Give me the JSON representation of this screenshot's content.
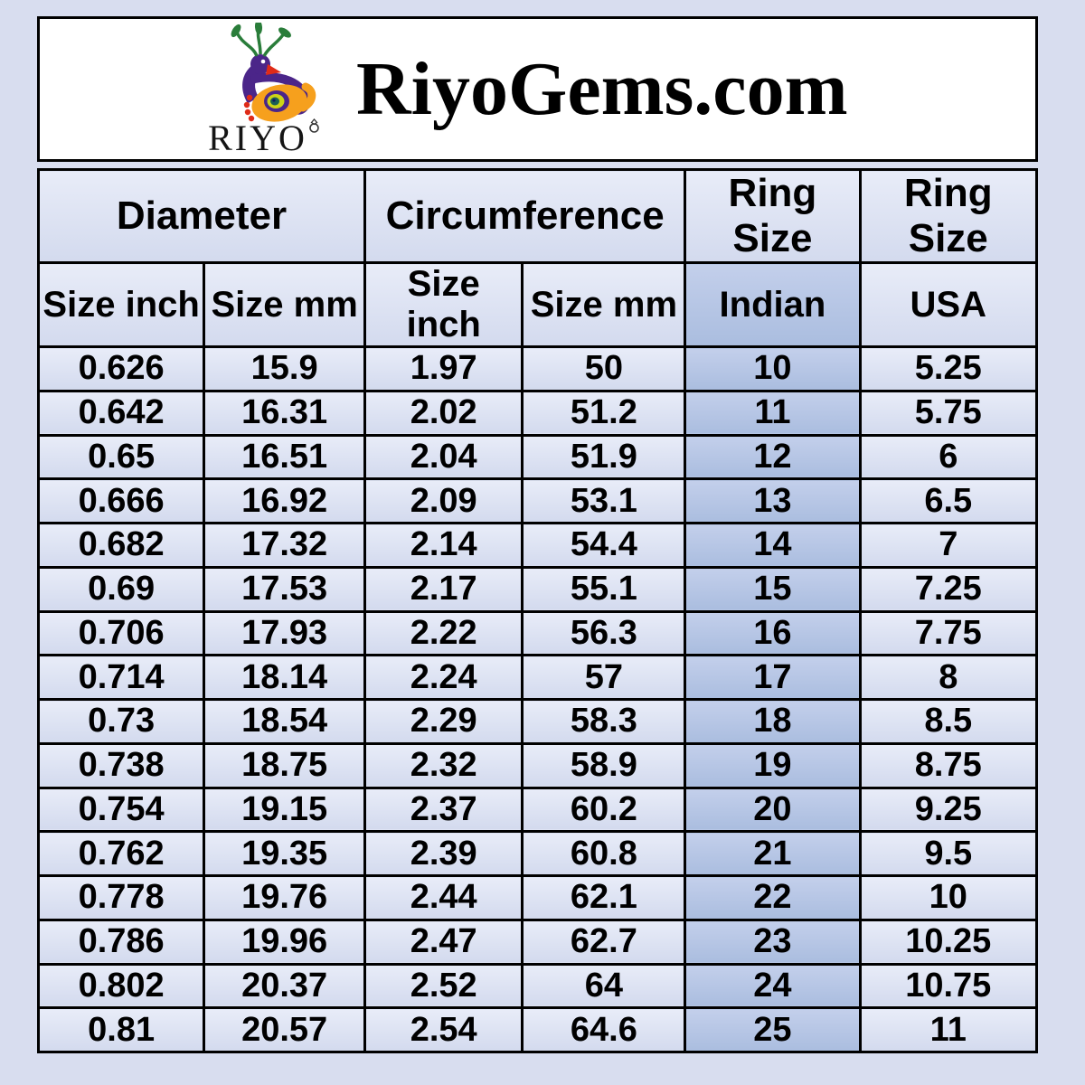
{
  "header": {
    "title": "RiyoGems.com",
    "logo_text": "RIYO"
  },
  "table": {
    "column_groups": [
      {
        "label": "Diameter",
        "span": 2
      },
      {
        "label": "Circumference",
        "span": 2
      },
      {
        "label": "Ring Size",
        "span": 1
      },
      {
        "label": "Ring Size",
        "span": 1
      }
    ],
    "columns": [
      "Size inch",
      "Size mm",
      "Size inch",
      "Size mm",
      "Indian",
      "USA"
    ],
    "highlighted_column": "Indian",
    "highlighted_column_index": 4,
    "rows": [
      [
        "0.626",
        "15.9",
        "1.97",
        "50",
        "10",
        "5.25"
      ],
      [
        "0.642",
        "16.31",
        "2.02",
        "51.2",
        "11",
        "5.75"
      ],
      [
        "0.65",
        "16.51",
        "2.04",
        "51.9",
        "12",
        "6"
      ],
      [
        "0.666",
        "16.92",
        "2.09",
        "53.1",
        "13",
        "6.5"
      ],
      [
        "0.682",
        "17.32",
        "2.14",
        "54.4",
        "14",
        "7"
      ],
      [
        "0.69",
        "17.53",
        "2.17",
        "55.1",
        "15",
        "7.25"
      ],
      [
        "0.706",
        "17.93",
        "2.22",
        "56.3",
        "16",
        "7.75"
      ],
      [
        "0.714",
        "18.14",
        "2.24",
        "57",
        "17",
        "8"
      ],
      [
        "0.73",
        "18.54",
        "2.29",
        "58.3",
        "18",
        "8.5"
      ],
      [
        "0.738",
        "18.75",
        "2.32",
        "58.9",
        "19",
        "8.75"
      ],
      [
        "0.754",
        "19.15",
        "2.37",
        "60.2",
        "20",
        "9.25"
      ],
      [
        "0.762",
        "19.35",
        "2.39",
        "60.8",
        "21",
        "9.5"
      ],
      [
        "0.778",
        "19.76",
        "2.44",
        "62.1",
        "22",
        "10"
      ],
      [
        "0.786",
        "19.96",
        "2.47",
        "62.7",
        "23",
        "10.25"
      ],
      [
        "0.802",
        "20.37",
        "2.52",
        "64",
        "24",
        "10.75"
      ],
      [
        "0.81",
        "20.57",
        "2.54",
        "64.6",
        "25",
        "11"
      ]
    ]
  },
  "colors": {
    "page_background": "#d8ddef",
    "header_box_background": "#ffffff",
    "cell_background": "#dce2f1",
    "highlight_cell_background": "#b5c4e5",
    "border": "#000000",
    "logo_purple": "#4b2589",
    "logo_orange": "#f6a01d",
    "logo_green": "#2a7d3a",
    "logo_red": "#df2b18"
  }
}
